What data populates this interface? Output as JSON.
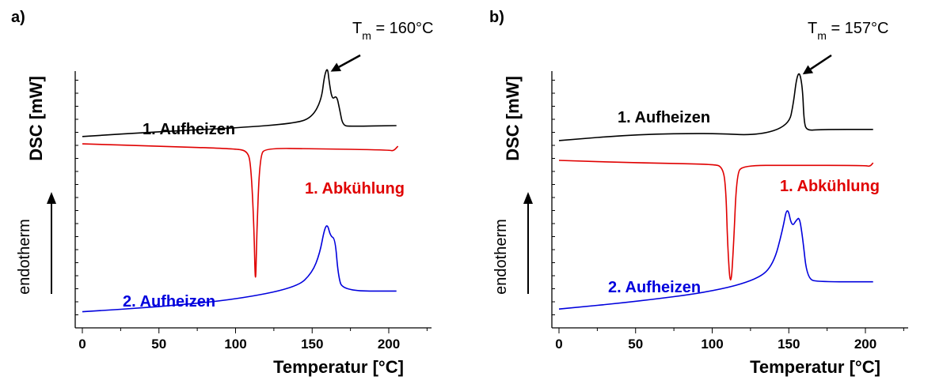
{
  "colors": {
    "black": "#000000",
    "red": "#e00000",
    "blue": "#0000dd"
  },
  "chart_data": [
    {
      "panel": "a)",
      "type": "line",
      "xlabel": "Temperatur [°C]",
      "ylabel": "DSC [mW]",
      "y_direction_label": "endotherm",
      "xlim": [
        0,
        225
      ],
      "xticks": [
        0,
        50,
        100,
        150,
        200
      ],
      "y_units": "arbitrary (offset curves)",
      "annotation": {
        "label": "T",
        "sub": "m",
        "value": " = 160°C",
        "points_to": [
          160,
          9.9
        ]
      },
      "series": [
        {
          "name": "1. Aufheizen",
          "color": "#000000",
          "points": [
            [
              0,
              7.1
            ],
            [
              50,
              7.3
            ],
            [
              100,
              7.45
            ],
            [
              140,
              7.65
            ],
            [
              150,
              7.9
            ],
            [
              156,
              8.6
            ],
            [
              158,
              9.6
            ],
            [
              160,
              9.95
            ],
            [
              161,
              9.4
            ],
            [
              163,
              8.6
            ],
            [
              166,
              8.8
            ],
            [
              168,
              8.2
            ],
            [
              170,
              7.55
            ],
            [
              175,
              7.52
            ],
            [
              205,
              7.55
            ]
          ]
        },
        {
          "name": "1. Abkühlung",
          "color": "#e00000",
          "points": [
            [
              0,
              6.8
            ],
            [
              50,
              6.7
            ],
            [
              100,
              6.6
            ],
            [
              108,
              6.5
            ],
            [
              110,
              5.9
            ],
            [
              112,
              3.5
            ],
            [
              113,
              0.6
            ],
            [
              114,
              3.5
            ],
            [
              116,
              6.35
            ],
            [
              120,
              6.62
            ],
            [
              150,
              6.6
            ],
            [
              200,
              6.55
            ],
            [
              203,
              6.5
            ],
            [
              206,
              6.7
            ]
          ]
        },
        {
          "name": "2. Aufheizen",
          "color": "#0000dd",
          "points": [
            [
              0,
              -0.1
            ],
            [
              50,
              0.1
            ],
            [
              100,
              0.4
            ],
            [
              140,
              0.9
            ],
            [
              150,
              1.5
            ],
            [
              155,
              2.3
            ],
            [
              158,
              3.3
            ],
            [
              160,
              3.5
            ],
            [
              162,
              3.0
            ],
            [
              165,
              2.9
            ],
            [
              167,
              1.4
            ],
            [
              170,
              0.75
            ],
            [
              205,
              0.75
            ]
          ]
        }
      ]
    },
    {
      "panel": "b)",
      "type": "line",
      "xlabel": "Temperatur [°C]",
      "ylabel": "DSC [mW]",
      "y_direction_label": "endotherm",
      "xlim": [
        0,
        225
      ],
      "xticks": [
        0,
        50,
        100,
        150,
        200
      ],
      "y_units": "arbitrary (offset curves)",
      "annotation": {
        "label": "T",
        "sub": "m",
        "value": " = 157°C",
        "points_to": [
          157,
          10.2
        ]
      },
      "series": [
        {
          "name": "1. Aufheizen",
          "color": "#000000",
          "points": [
            [
              0,
              7.4
            ],
            [
              50,
              7.65
            ],
            [
              100,
              7.7
            ],
            [
              130,
              7.6
            ],
            [
              150,
              8.0
            ],
            [
              153,
              8.9
            ],
            [
              155,
              9.9
            ],
            [
              157,
              10.2
            ],
            [
              159,
              9.5
            ],
            [
              160,
              8.1
            ],
            [
              162,
              7.8
            ],
            [
              170,
              7.85
            ],
            [
              205,
              7.85
            ]
          ]
        },
        {
          "name": "1. Abkühlung",
          "color": "#e00000",
          "points": [
            [
              0,
              6.6
            ],
            [
              50,
              6.5
            ],
            [
              100,
              6.45
            ],
            [
              107,
              6.35
            ],
            [
              109,
              5.4
            ],
            [
              110,
              3.2
            ],
            [
              112,
              1.3
            ],
            [
              114,
              3.2
            ],
            [
              116,
              6.05
            ],
            [
              120,
              6.4
            ],
            [
              150,
              6.4
            ],
            [
              200,
              6.4
            ],
            [
              203,
              6.35
            ],
            [
              205,
              6.5
            ]
          ]
        },
        {
          "name": "2. Aufheizen",
          "color": "#0000dd",
          "points": [
            [
              0,
              0.6
            ],
            [
              50,
              0.9
            ],
            [
              100,
              1.3
            ],
            [
              130,
              1.8
            ],
            [
              140,
              2.4
            ],
            [
              146,
              3.8
            ],
            [
              149,
              4.8
            ],
            [
              152,
              3.9
            ],
            [
              155,
              4.2
            ],
            [
              157,
              4.3
            ],
            [
              159,
              3.5
            ],
            [
              162,
              1.8
            ],
            [
              170,
              1.7
            ],
            [
              205,
              1.7
            ]
          ]
        }
      ]
    }
  ]
}
